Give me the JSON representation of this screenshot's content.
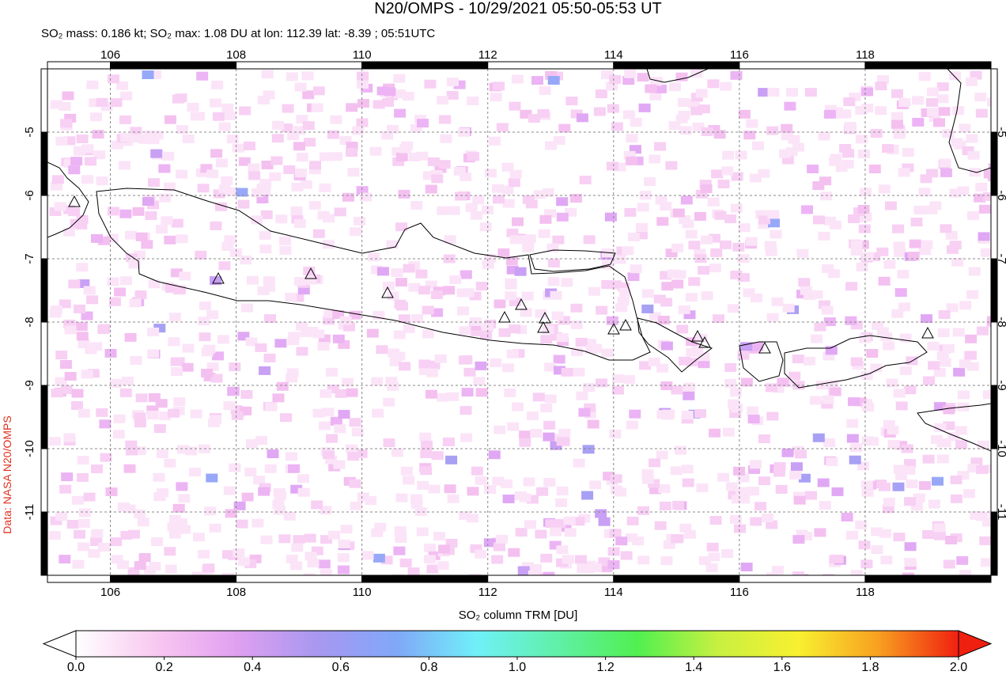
{
  "header": {
    "title": "N20/OMPS - 10/29/2021 05:50-05:53 UT",
    "subtitle": "SO₂ mass: 0.186 kt; SO₂ max: 1.08 DU at lon: 112.39 lat: -8.39 ; 05:51UTC"
  },
  "credit": "Data: NASA N20/OMPS",
  "map": {
    "lon_range": [
      105,
      120
    ],
    "lat_range": [
      -4,
      -12
    ],
    "lon_ticks": [
      106,
      108,
      110,
      112,
      114,
      116,
      118
    ],
    "lat_ticks": [
      -5,
      -6,
      -7,
      -8,
      -9,
      -10,
      -11
    ]
  },
  "colorbar": {
    "label": "SO₂ column TRM [DU]",
    "range": [
      0,
      2
    ],
    "colors": [
      "#ffffff",
      "#f8c8f0",
      "#e0a0f0",
      "#a898f0",
      "#80a8f8",
      "#70f0f8",
      "#60f0a8",
      "#50f050",
      "#c8f040",
      "#f8f030",
      "#f8a020",
      "#f02010"
    ],
    "ticks": [
      {
        "value": 0,
        "label": "0.0"
      },
      {
        "value": 0.2,
        "label": "0.2"
      },
      {
        "value": 0.4,
        "label": "0.4"
      },
      {
        "value": 0.6,
        "label": "0.6"
      },
      {
        "value": 0.8,
        "label": "0.8"
      },
      {
        "value": 1,
        "label": "1.0"
      },
      {
        "value": 1.2,
        "label": "1.2"
      },
      {
        "value": 1.4,
        "label": "1.4"
      },
      {
        "value": 1.6,
        "label": "1.6"
      },
      {
        "value": 1.8,
        "label": "1.8"
      },
      {
        "value": 2,
        "label": "2.0"
      }
    ]
  }
}
